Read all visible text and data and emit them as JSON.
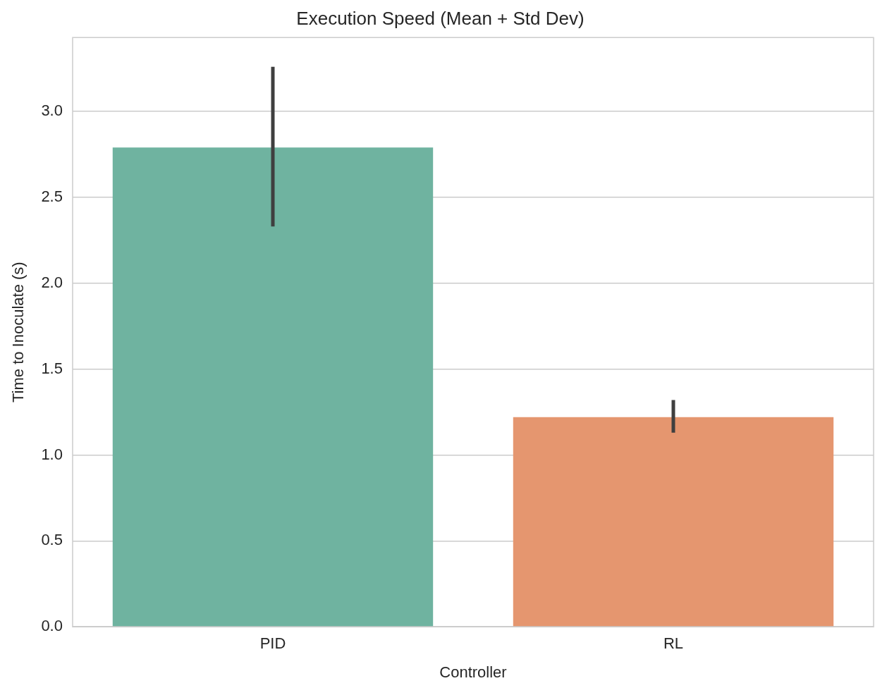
{
  "chart_data": {
    "type": "bar",
    "title": "Execution Speed (Mean + Std Dev)",
    "xlabel": "Controller",
    "ylabel": "Time to Inoculate (s)",
    "categories": [
      "PID",
      "RL"
    ],
    "values": [
      2.79,
      1.22
    ],
    "colors": [
      "#6fb3a0",
      "#e5966f"
    ],
    "errors": [
      [
        2.33,
        3.26
      ],
      [
        1.13,
        1.32
      ]
    ],
    "ylim": [
      0,
      3.43
    ],
    "yticks": [
      {
        "value": 0,
        "label": "0.0"
      },
      {
        "value": 0.5,
        "label": "0.5"
      },
      {
        "value": 1,
        "label": "1.0"
      },
      {
        "value": 1.5,
        "label": "1.5"
      },
      {
        "value": 2,
        "label": "2.0"
      },
      {
        "value": 2.5,
        "label": "2.5"
      },
      {
        "value": 3,
        "label": "3.0"
      }
    ],
    "grid": "y",
    "legend": false
  }
}
